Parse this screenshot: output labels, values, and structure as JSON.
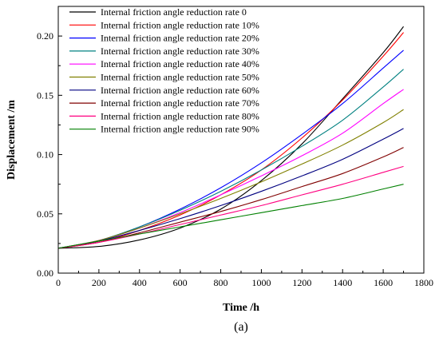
{
  "chart_data": {
    "type": "line",
    "xlabel": "Time /h",
    "ylabel": "Displacement /m",
    "xlim": [
      0,
      1800
    ],
    "ylim": [
      0,
      0.225
    ],
    "xticks": [
      0,
      200,
      400,
      600,
      800,
      1000,
      1200,
      1400,
      1600,
      1800
    ],
    "xtick_labels": [
      "0",
      "200",
      "400",
      "600",
      "800",
      "1000",
      "1200",
      "1400",
      "1600",
      "1800"
    ],
    "yticks": [
      0,
      0.05,
      0.1,
      0.15,
      0.2
    ],
    "ytick_labels": [
      "0.00",
      "0.05",
      "0.10",
      "0.15",
      "0.20"
    ],
    "grid": false,
    "legend_position": "top-left",
    "caption": "(a)",
    "x": [
      0,
      200,
      400,
      600,
      800,
      1000,
      1200,
      1400,
      1600,
      1700
    ],
    "series": [
      {
        "name": "Internal friction angle reduction rate 0",
        "color": "#000000",
        "values": [
          0.021,
          0.0225,
          0.028,
          0.038,
          0.054,
          0.078,
          0.109,
          0.147,
          0.186,
          0.208
        ]
      },
      {
        "name": "Internal friction angle reduction rate 10%",
        "color": "#ff0000",
        "values": [
          0.021,
          0.026,
          0.036,
          0.049,
          0.066,
          0.087,
          0.114,
          0.146,
          0.183,
          0.203
        ]
      },
      {
        "name": "Internal friction angle reduction rate 20%",
        "color": "#0000ff",
        "values": [
          0.021,
          0.0275,
          0.039,
          0.054,
          0.072,
          0.093,
          0.117,
          0.143,
          0.173,
          0.188
        ]
      },
      {
        "name": "Internal friction angle reduction rate 30%",
        "color": "#008080",
        "values": [
          0.021,
          0.0275,
          0.039,
          0.053,
          0.069,
          0.087,
          0.107,
          0.129,
          0.157,
          0.172
        ]
      },
      {
        "name": "Internal friction angle reduction rate 40%",
        "color": "#ff00ff",
        "values": [
          0.021,
          0.0275,
          0.038,
          0.051,
          0.066,
          0.082,
          0.099,
          0.118,
          0.143,
          0.155
        ]
      },
      {
        "name": "Internal friction angle reduction rate 50%",
        "color": "#808000",
        "values": [
          0.021,
          0.0275,
          0.038,
          0.05,
          0.063,
          0.077,
          0.092,
          0.108,
          0.127,
          0.138
        ]
      },
      {
        "name": "Internal friction angle reduction rate 60%",
        "color": "#000080",
        "values": [
          0.021,
          0.027,
          0.036,
          0.046,
          0.057,
          0.069,
          0.082,
          0.096,
          0.113,
          0.122
        ]
      },
      {
        "name": "Internal friction angle reduction rate 70%",
        "color": "#800000",
        "values": [
          0.021,
          0.026,
          0.034,
          0.043,
          0.052,
          0.062,
          0.073,
          0.084,
          0.098,
          0.106
        ]
      },
      {
        "name": "Internal friction angle reduction rate 80%",
        "color": "#ff0080",
        "values": [
          0.021,
          0.026,
          0.033,
          0.041,
          0.049,
          0.057,
          0.066,
          0.075,
          0.085,
          0.09
        ]
      },
      {
        "name": "Internal friction angle reduction rate 90%",
        "color": "#008000",
        "values": [
          0.021,
          0.027,
          0.033,
          0.039,
          0.045,
          0.051,
          0.057,
          0.063,
          0.071,
          0.075
        ]
      }
    ]
  }
}
